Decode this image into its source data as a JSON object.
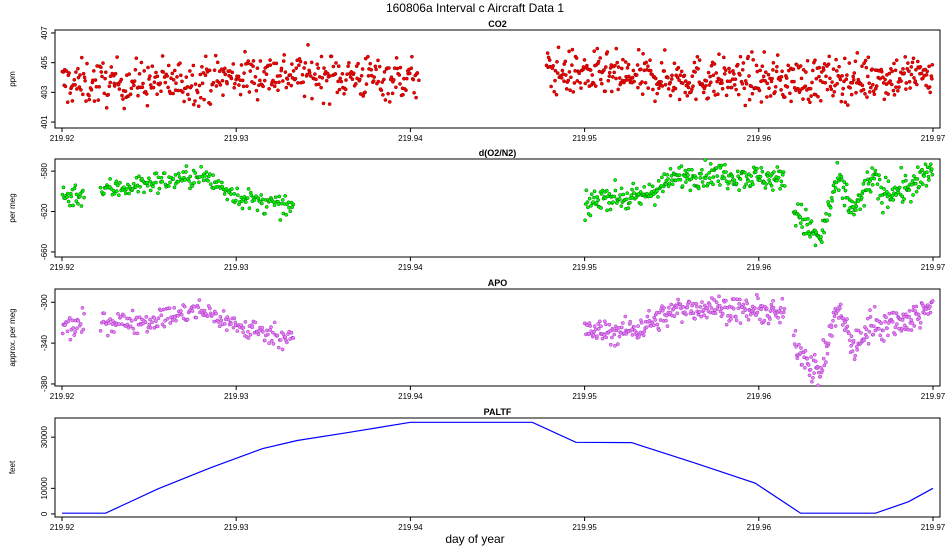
{
  "figure_title": "160806a   Interval c Aircraft Data 1",
  "xlabel": "day of year",
  "chart_data": [
    {
      "type": "scatter",
      "title": "CO2",
      "ylabel": "ppm",
      "xlim": [
        219.92,
        219.97
      ],
      "ylim": [
        400.6,
        407.2
      ],
      "xticks": [
        "219.92",
        "219.93",
        "219.94",
        "219.95",
        "219.96",
        "219.97"
      ],
      "yticks": [
        401,
        403,
        405,
        407
      ],
      "color": "#ff0000",
      "edge_color": "#8b0000",
      "segments": [
        {
          "x_start": 219.92,
          "x_end": 219.9405,
          "center": 403.8,
          "spread": 1.0,
          "n": 420
        },
        {
          "x_start": 219.9478,
          "x_end": 219.97,
          "center": 404.0,
          "spread": 1.0,
          "n": 520
        }
      ],
      "trend": [
        [
          219.92,
          403.6
        ],
        [
          219.927,
          403.7
        ],
        [
          219.932,
          404.3
        ],
        [
          219.936,
          404.1
        ],
        [
          219.9405,
          403.9
        ],
        [
          219.948,
          404.4
        ],
        [
          219.953,
          404.0
        ],
        [
          219.958,
          403.9
        ],
        [
          219.963,
          403.8
        ],
        [
          219.97,
          404.2
        ]
      ]
    },
    {
      "type": "scatter",
      "title": "d(O2/N2)",
      "ylabel": "per meg",
      "xlim": [
        219.92,
        219.97
      ],
      "ylim": [
        -665,
        -568
      ],
      "xticks": [
        "219.92",
        "219.93",
        "219.94",
        "219.95",
        "219.96",
        "219.97"
      ],
      "yticks": [
        -580,
        -620,
        -660
      ],
      "color": "#00ff00",
      "edge_color": "#006400",
      "segments": [
        {
          "x_start": 219.92,
          "x_end": 219.9213,
          "center": -605,
          "spread": 8,
          "n": 25
        },
        {
          "x_start": 219.9222,
          "x_end": 219.9333,
          "center": -600,
          "spread": 7,
          "n": 200
        },
        {
          "x_start": 219.95,
          "x_end": 219.9615,
          "center": -595,
          "spread": 8,
          "n": 260
        },
        {
          "x_start": 219.962,
          "x_end": 219.97,
          "center": -610,
          "spread": 10,
          "n": 200
        }
      ],
      "trend": [
        [
          219.92,
          -605
        ],
        [
          219.922,
          -600
        ],
        [
          219.925,
          -592
        ],
        [
          219.928,
          -585
        ],
        [
          219.9305,
          -608
        ],
        [
          219.9333,
          -617
        ],
        [
          219.95,
          -618
        ],
        [
          219.951,
          -604
        ],
        [
          219.953,
          -608
        ],
        [
          219.9555,
          -585
        ],
        [
          219.9575,
          -583
        ],
        [
          219.9615,
          -588
        ],
        [
          219.962,
          -618
        ],
        [
          219.9635,
          -650
        ],
        [
          219.9645,
          -590
        ],
        [
          219.9655,
          -620
        ],
        [
          219.9665,
          -585
        ],
        [
          219.967,
          -602
        ],
        [
          219.969,
          -595
        ],
        [
          219.97,
          -578
        ]
      ]
    },
    {
      "type": "scatter",
      "title": "APO",
      "ylabel": "approx. per meg",
      "xlim": [
        219.92,
        219.97
      ],
      "ylim": [
        -382,
        -287
      ],
      "xticks": [
        "219.92",
        "219.93",
        "219.94",
        "219.95",
        "219.96",
        "219.97"
      ],
      "yticks": [
        -300,
        -340,
        -380
      ],
      "color": "#ee82ee",
      "edge_color": "#9932cc",
      "segments": [
        {
          "x_start": 219.92,
          "x_end": 219.9213,
          "center": -326,
          "spread": 8,
          "n": 25
        },
        {
          "x_start": 219.9222,
          "x_end": 219.9333,
          "center": -320,
          "spread": 7,
          "n": 200
        },
        {
          "x_start": 219.95,
          "x_end": 219.9615,
          "center": -315,
          "spread": 8,
          "n": 260
        },
        {
          "x_start": 219.962,
          "x_end": 219.97,
          "center": -330,
          "spread": 10,
          "n": 200
        }
      ],
      "trend": [
        [
          219.92,
          -326
        ],
        [
          219.922,
          -320
        ],
        [
          219.925,
          -318
        ],
        [
          219.928,
          -308
        ],
        [
          219.9305,
          -326
        ],
        [
          219.9333,
          -335
        ],
        [
          219.95,
          -328
        ],
        [
          219.9515,
          -330
        ],
        [
          219.953,
          -326
        ],
        [
          219.9555,
          -306
        ],
        [
          219.9575,
          -305
        ],
        [
          219.9615,
          -312
        ],
        [
          219.962,
          -338
        ],
        [
          219.9635,
          -372
        ],
        [
          219.9645,
          -305
        ],
        [
          219.9655,
          -345
        ],
        [
          219.9665,
          -320
        ],
        [
          219.967,
          -322
        ],
        [
          219.969,
          -315
        ],
        [
          219.97,
          -298
        ]
      ]
    },
    {
      "type": "line",
      "title": "PALTF",
      "ylabel": "feet",
      "xlim": [
        219.92,
        219.97
      ],
      "ylim": [
        -1200,
        37500
      ],
      "xticks": [
        "219.92",
        "219.93",
        "219.94",
        "219.95",
        "219.96",
        "219.97"
      ],
      "yticks": [
        0,
        10000,
        30000
      ],
      "color": "#0000ff",
      "x": [
        219.92,
        219.9225,
        219.9255,
        219.9285,
        219.9315,
        219.9335,
        219.9365,
        219.94,
        219.9447,
        219.947,
        219.9495,
        219.9527,
        219.9563,
        219.9598,
        219.9624,
        219.9652,
        219.9667,
        219.9686,
        219.97
      ],
      "y": [
        300,
        300,
        9800,
        18000,
        25500,
        28700,
        31900,
        35800,
        35800,
        35800,
        28000,
        27900,
        20000,
        12000,
        300,
        300,
        300,
        4800,
        10000
      ]
    }
  ]
}
